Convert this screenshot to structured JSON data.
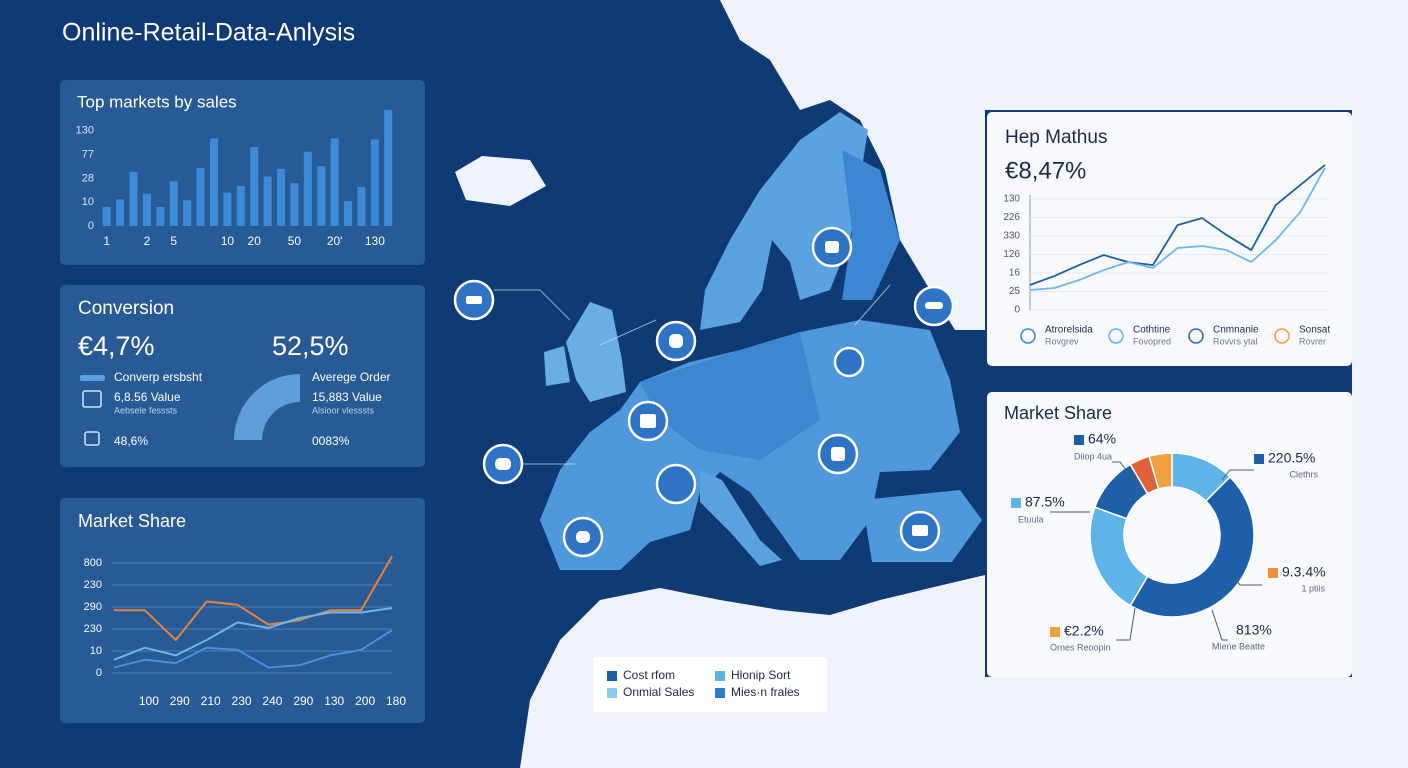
{
  "header": {
    "title": "Online-Retail-Data-Anlysis"
  },
  "conversion": {
    "title": "Conversion",
    "left": {
      "big": "€4,7%",
      "legend": "Converp ersbsht",
      "value": "6,8.56 Value",
      "value_sub": "Aebsele fesssts",
      "pct": "48,6%"
    },
    "right": {
      "big": "52,5%",
      "label": "Averege Order",
      "value": "15,883 Value",
      "value_sub": "Alsioor vlesssts",
      "pct": "0083%"
    }
  },
  "map": {
    "legend": [
      {
        "label": "Cost rfom",
        "color": "#1d5fa8"
      },
      {
        "label": "Hlonip Sort",
        "color": "#5eb3e8"
      },
      {
        "label": "Onmial Sales",
        "color": "#8cc8f0"
      },
      {
        "label": "Mies·n frales",
        "color": "#2f7ac8"
      }
    ]
  },
  "chart_data": [
    {
      "type": "bar",
      "title": "Top markets by sales",
      "categories": [
        "1",
        null,
        null,
        "2",
        null,
        "5",
        null,
        null,
        null,
        "10",
        null,
        "20",
        null,
        null,
        "50",
        null,
        null,
        "20'",
        null,
        null,
        "130",
        null
      ],
      "values": [
        20,
        28,
        57,
        34,
        20,
        47,
        27,
        61,
        92,
        35,
        42,
        83,
        52,
        60,
        45,
        78,
        63,
        92,
        26,
        41,
        91,
        122
      ],
      "color": "#3f8ad8",
      "ylim": [
        0,
        125
      ],
      "yticks": [
        0,
        {
          "value": 25,
          "label": "10"
        },
        {
          "value": 50,
          "label": "28"
        },
        {
          "value": 75,
          "label": "77"
        },
        {
          "value": 100,
          "label": "130"
        }
      ],
      "grid": false
    },
    {
      "type": "line",
      "title": "Market Share",
      "categories": [
        null,
        "100",
        "290",
        "210",
        "230",
        "240",
        "290",
        "130",
        "200",
        "180"
      ],
      "series": [
        {
          "color": "#e8843a",
          "values": [
            57,
            57,
            30,
            65,
            62,
            44,
            48,
            57,
            57,
            106
          ]
        },
        {
          "color": "#6fb6ea",
          "values": [
            12,
            23,
            16,
            30,
            46,
            41,
            50,
            55,
            55,
            59
          ]
        },
        {
          "color": "#4a90dc",
          "values": [
            5,
            12,
            9,
            23,
            21,
            5,
            7,
            16,
            21,
            39
          ]
        }
      ],
      "ylim": [
        0,
        110
      ],
      "yticks": [
        0,
        {
          "value": 20,
          "label": "10"
        },
        {
          "value": 40,
          "label": "230"
        },
        {
          "value": 60,
          "label": "290"
        },
        {
          "value": 80,
          "label": "230"
        },
        {
          "value": 100,
          "label": "800"
        }
      ],
      "grid": true
    },
    {
      "type": "line",
      "title": "Hep Mathus",
      "subtitle": "€8,47%",
      "series": [
        {
          "color": "#1e5ea8",
          "values": [
            13.5,
            18.4,
            24.3,
            29.7,
            25.9,
            24.3,
            45.9,
            49.7,
            40.5,
            32.4,
            56.8,
            67.6,
            78.4
          ]
        },
        {
          "color": "#6fb6ea",
          "values": [
            10.8,
            11.9,
            16.2,
            21.6,
            25.9,
            22.7,
            33.5,
            34.6,
            32.4,
            25.9,
            37.8,
            53,
            76.8
          ]
        }
      ],
      "ylim": [
        0,
        80
      ],
      "yticks": [
        0,
        {
          "value": 10,
          "label": "25"
        },
        {
          "value": 20,
          "label": "16"
        },
        {
          "value": 30,
          "label": "126"
        },
        {
          "value": 40,
          "label": "330"
        },
        {
          "value": 50,
          "label": "226"
        },
        {
          "value": 60,
          "label": "130"
        }
      ],
      "grid": true,
      "legend": [
        {
          "label": "Atrorelsida",
          "sub": "Rovgrev",
          "color": "#3f8ad8"
        },
        {
          "label": "Cothtine",
          "sub": "Fovopred",
          "color": "#5eb3e8"
        },
        {
          "label": "Cnmnanie",
          "sub": "Rovvrs ytal",
          "color": "#2f6fb8"
        },
        {
          "label": "Sonsat",
          "sub": "Rovrer",
          "color": "#f0a040"
        }
      ]
    },
    {
      "type": "pie",
      "title": "Market Share",
      "values": [
        12.5,
        46,
        22,
        11,
        4,
        4.5
      ],
      "colors": [
        "#5eb3e8",
        "#1d5fa8",
        "#5eb3e8",
        "#1d5fa8",
        "#e0603a",
        "#f0a040"
      ],
      "annotations": [
        {
          "text": "64%",
          "sub": "Diiop 4ua",
          "color": "#1d5fa8"
        },
        {
          "text": "220.5%",
          "sub": "Clethrs",
          "color": "#1d5fa8"
        },
        {
          "text": "87.5%",
          "sub": "Etuula",
          "color": "#5eb3e8"
        },
        {
          "text": "9.3.4%",
          "sub": "1 ptiis",
          "color": "#f0903a"
        },
        {
          "text": "€2.2%",
          "sub": "Ornes Reoopin",
          "color": "#f0a040"
        },
        {
          "text": "813%",
          "sub": "Miene Beatte"
        }
      ]
    }
  ]
}
